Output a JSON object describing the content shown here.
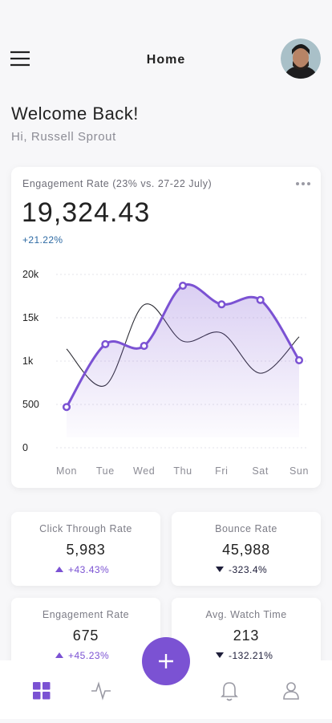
{
  "header": {
    "title": "Home"
  },
  "welcome": {
    "title": "Welcome Back!",
    "subtitle": "Hi, Russell Sprout"
  },
  "engagement_card": {
    "title": "Engagement Rate (23% vs. 27-22 July)",
    "value": "19,324.43",
    "change": "+21.22%"
  },
  "chart_data": {
    "type": "line",
    "categories": [
      "Mon",
      "Tue",
      "Wed",
      "Thu",
      "Fri",
      "Sat",
      "Sun"
    ],
    "ylim": [
      0,
      4
    ],
    "yticks": [
      {
        "value": 0,
        "label": "0"
      },
      {
        "value": 1,
        "label": "500"
      },
      {
        "value": 2,
        "label": "1k"
      },
      {
        "value": 3,
        "label": "15k"
      },
      {
        "value": 4,
        "label": "20k"
      }
    ],
    "grid": true,
    "series": [
      {
        "color": "#7b52d3",
        "values": [
          0.94,
          2.39,
          2.35,
          3.74,
          3.31,
          3.41,
          2.02
        ],
        "area": true,
        "markers": true
      },
      {
        "color": "#2b2b33",
        "values": [
          2.28,
          1.44,
          3.3,
          2.46,
          2.65,
          1.72,
          2.56
        ],
        "area": false,
        "markers": false
      }
    ]
  },
  "stats": [
    {
      "label": "Click Through Rate",
      "value": "5,983",
      "change": "+43.43%",
      "direction": "up"
    },
    {
      "label": "Bounce Rate",
      "value": "45,988",
      "change": "-323.4%",
      "direction": "down"
    },
    {
      "label": "Engagement Rate",
      "value": "675",
      "change": "+45.23%",
      "direction": "up"
    },
    {
      "label": "Avg. Watch Time",
      "value": "213",
      "change": "-132.21%",
      "direction": "down"
    }
  ]
}
